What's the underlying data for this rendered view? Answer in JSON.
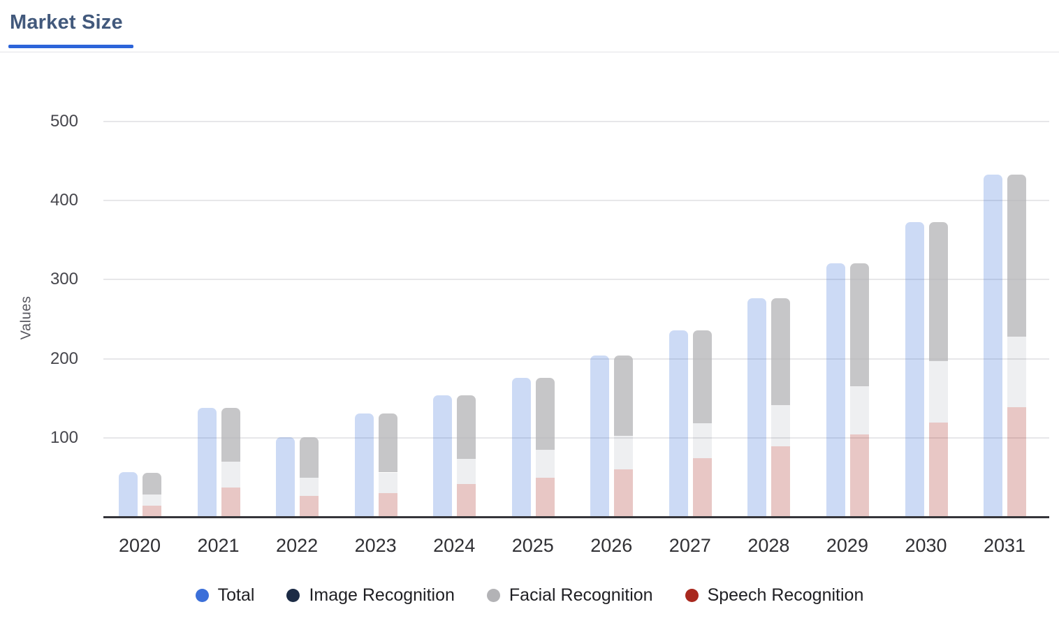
{
  "header": {
    "title": "Market Size"
  },
  "colors": {
    "accent": "#2c64d9",
    "title_text": "#42597c",
    "gridline": "#e7e7e9",
    "axis_line": "#35353a",
    "tick_text": "#303034",
    "axis_title_text": "#56565e",
    "legend_text": "#1f1f23"
  },
  "chart_data": {
    "type": "bar",
    "title": "Market Size",
    "xlabel": "",
    "ylabel": "Values",
    "categories": [
      "2020",
      "2021",
      "2022",
      "2023",
      "2024",
      "2025",
      "2026",
      "2027",
      "2028",
      "2029",
      "2030",
      "2031"
    ],
    "yticks": [
      100,
      200,
      300,
      400,
      500
    ],
    "ylim": [
      0,
      540
    ],
    "grid": true,
    "legend_position": "bottom",
    "bar_style": "grouped: solid Total bar beside a stacked components bar, rounded tops, translucent fills",
    "series": [
      {
        "name": "Total",
        "stack": null,
        "color": "#3b6fd9",
        "fill": "rgba(59,111,217,0.26)",
        "values": [
          57,
          139,
          102,
          132,
          155,
          177,
          205,
          237,
          277,
          322,
          374,
          434
        ]
      },
      {
        "name": "Image Recognition",
        "stack": "components",
        "color": "#1c2b45",
        "fill": "rgba(28,43,69,0.075)",
        "values": [
          14,
          33,
          23,
          26,
          32,
          36,
          42,
          44,
          52,
          61,
          78,
          89
        ]
      },
      {
        "name": "Facial Recognition",
        "stack": "components",
        "color": "#b3b3b6",
        "fill": "rgba(179,179,182,0.75)",
        "values": [
          28,
          68,
          52,
          75,
          81,
          91,
          102,
          118,
          135,
          156,
          176,
          205
        ]
      },
      {
        "name": "Speech Recognition",
        "stack": "components",
        "color": "#a8281e",
        "fill": "rgba(168,40,30,0.26)",
        "values": [
          15,
          38,
          27,
          31,
          42,
          50,
          61,
          75,
          90,
          105,
          120,
          140
        ]
      }
    ],
    "stack_order_bottom_to_top": [
      "Speech Recognition",
      "Image Recognition",
      "Facial Recognition"
    ]
  }
}
